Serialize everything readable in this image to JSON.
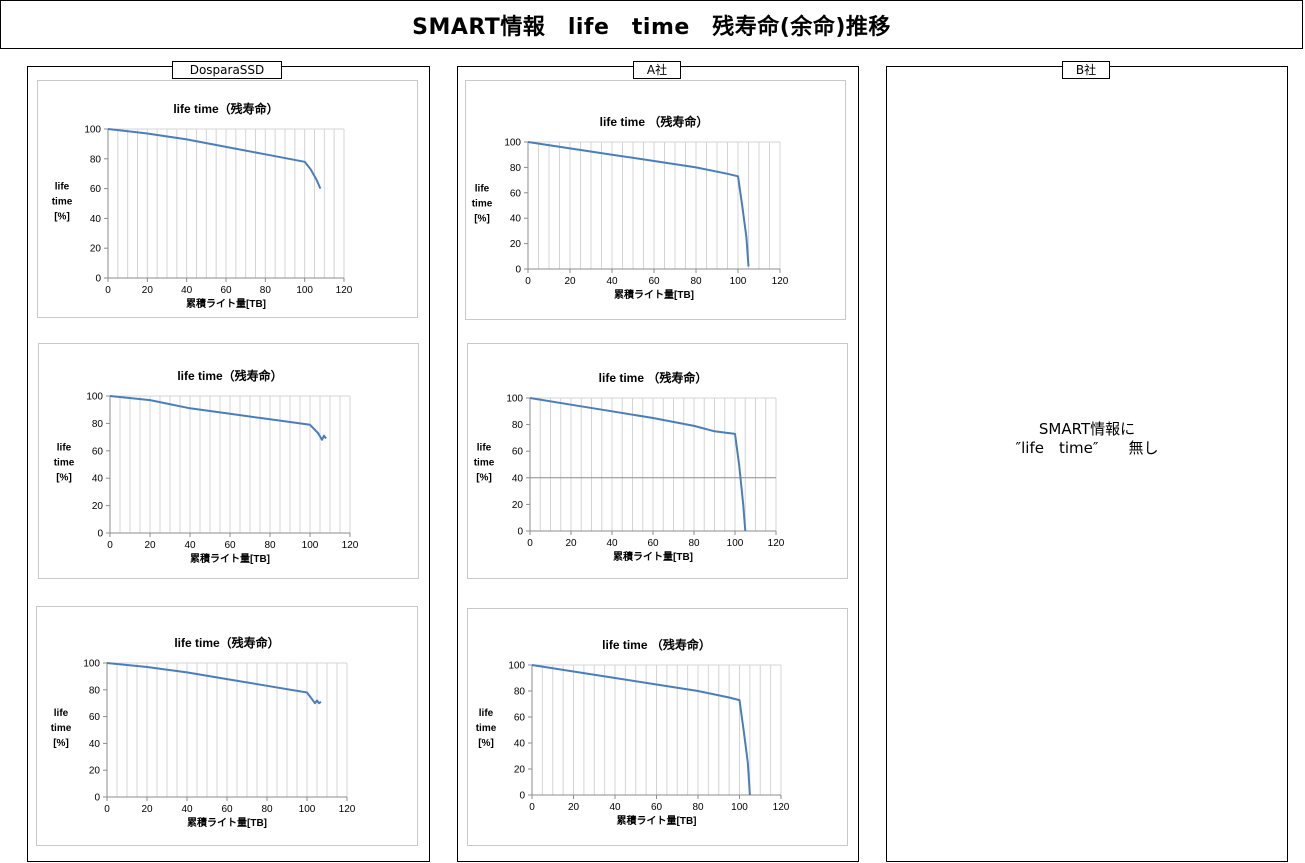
{
  "page_title": "SMART情報　life　time　残寿命(余命)推移",
  "panels": {
    "dospara": {
      "label": "DosparaSSD"
    },
    "a": {
      "label": "A社"
    },
    "b": {
      "label": "B社",
      "message_line1": "SMART情報に",
      "message_line2": "″life　time″　　無し"
    }
  },
  "chart_data": [
    {
      "id": "dospara-1",
      "type": "line",
      "title": "life time（残寿命）",
      "xlabel": "累積ライト量[TB]",
      "ylabel": [
        "life",
        "time",
        "[%]"
      ],
      "xlim": [
        0,
        120
      ],
      "ylim": [
        0,
        100
      ],
      "xticks": [
        0,
        20,
        40,
        60,
        80,
        100,
        120
      ],
      "yticks": [
        0,
        20,
        40,
        60,
        80,
        100
      ],
      "grid": "vertical",
      "series": [
        {
          "color": "#4a7ebb",
          "points": [
            [
              0,
              100
            ],
            [
              20,
              97
            ],
            [
              40,
              93
            ],
            [
              60,
              88
            ],
            [
              80,
              83
            ],
            [
              100,
              78
            ],
            [
              103,
              73
            ],
            [
              106,
              66
            ],
            [
              108,
              60
            ]
          ]
        }
      ]
    },
    {
      "id": "dospara-2",
      "type": "line",
      "title": "life time（残寿命）",
      "xlabel": "累積ライト量[TB]",
      "ylabel": [
        "life",
        "time",
        "[%]"
      ],
      "xlim": [
        0,
        120
      ],
      "ylim": [
        0,
        100
      ],
      "xticks": [
        0,
        20,
        40,
        60,
        80,
        100,
        120
      ],
      "yticks": [
        0,
        20,
        40,
        60,
        80,
        100
      ],
      "grid": "vertical",
      "series": [
        {
          "color": "#4a7ebb",
          "points": [
            [
              0,
              100
            ],
            [
              20,
              97
            ],
            [
              40,
              91
            ],
            [
              60,
              87
            ],
            [
              80,
              83
            ],
            [
              90,
              81
            ],
            [
              100,
              79
            ],
            [
              104,
              73
            ],
            [
              106,
              68
            ],
            [
              107,
              71
            ],
            [
              108,
              69
            ]
          ]
        }
      ]
    },
    {
      "id": "dospara-3",
      "type": "line",
      "title": "life time（残寿命）",
      "xlabel": "累積ライト量[TB]",
      "ylabel": [
        "life",
        "time",
        "[%]"
      ],
      "xlim": [
        0,
        120
      ],
      "ylim": [
        0,
        100
      ],
      "xticks": [
        0,
        20,
        40,
        60,
        80,
        100,
        120
      ],
      "yticks": [
        0,
        20,
        40,
        60,
        80,
        100
      ],
      "grid": "vertical",
      "series": [
        {
          "color": "#4a7ebb",
          "points": [
            [
              0,
              100
            ],
            [
              20,
              97
            ],
            [
              40,
              93
            ],
            [
              60,
              88
            ],
            [
              80,
              83
            ],
            [
              100,
              78
            ],
            [
              102,
              74
            ],
            [
              104,
              70
            ],
            [
              105,
              72
            ],
            [
              106,
              70
            ],
            [
              107,
              71
            ]
          ]
        }
      ]
    },
    {
      "id": "a-1",
      "type": "line",
      "title": "life time （残寿命）",
      "xlabel": "累積ライト量[TB]",
      "ylabel": [
        "life",
        "time",
        "[%]"
      ],
      "xlim": [
        0,
        120
      ],
      "ylim": [
        0,
        100
      ],
      "xticks": [
        0,
        20,
        40,
        60,
        80,
        100,
        120
      ],
      "yticks": [
        0,
        20,
        40,
        60,
        80,
        100
      ],
      "grid": "vertical",
      "series": [
        {
          "color": "#4a7ebb",
          "points": [
            [
              0,
              100
            ],
            [
              20,
              95
            ],
            [
              40,
              90
            ],
            [
              60,
              85
            ],
            [
              80,
              80
            ],
            [
              95,
              75
            ],
            [
              100,
              73
            ],
            [
              102,
              50
            ],
            [
              104,
              25
            ],
            [
              105,
              2
            ]
          ]
        }
      ]
    },
    {
      "id": "a-2",
      "type": "line",
      "title": "life time （残寿命）",
      "xlabel": "累積ライト量[TB]",
      "ylabel": [
        "life",
        "time",
        "[%]"
      ],
      "xlim": [
        0,
        120
      ],
      "ylim": [
        0,
        100
      ],
      "xticks": [
        0,
        20,
        40,
        60,
        80,
        100,
        120
      ],
      "yticks": [
        0,
        20,
        40,
        60,
        80,
        100
      ],
      "grid": "vertical-and-40",
      "series": [
        {
          "color": "#4a7ebb",
          "points": [
            [
              0,
              100
            ],
            [
              20,
              95
            ],
            [
              40,
              90
            ],
            [
              60,
              85
            ],
            [
              80,
              79
            ],
            [
              90,
              75
            ],
            [
              100,
              73
            ],
            [
              102,
              50
            ],
            [
              104,
              20
            ],
            [
              105,
              0
            ]
          ]
        }
      ]
    },
    {
      "id": "a-3",
      "type": "line",
      "title": "life time （残寿命）",
      "xlabel": "累積ライト量[TB]",
      "ylabel": [
        "life",
        "time",
        "[%]"
      ],
      "xlim": [
        0,
        120
      ],
      "ylim": [
        0,
        100
      ],
      "xticks": [
        0,
        20,
        40,
        60,
        80,
        100,
        120
      ],
      "yticks": [
        0,
        20,
        40,
        60,
        80,
        100
      ],
      "grid": "vertical",
      "series": [
        {
          "color": "#4a7ebb",
          "points": [
            [
              0,
              100
            ],
            [
              20,
              95
            ],
            [
              40,
              90
            ],
            [
              60,
              85
            ],
            [
              80,
              80
            ],
            [
              95,
              75
            ],
            [
              100,
              73
            ],
            [
              102,
              50
            ],
            [
              104,
              25
            ],
            [
              105,
              0
            ]
          ]
        }
      ]
    }
  ]
}
